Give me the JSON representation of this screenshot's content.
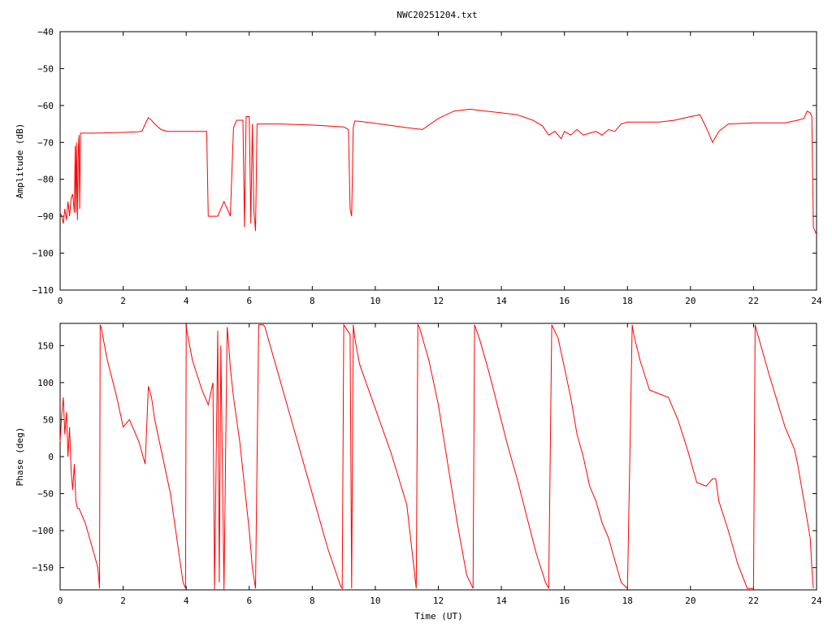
{
  "chart_data": [
    {
      "type": "line",
      "title": "NWC20251204.txt",
      "xlabel": "",
      "ylabel": "Amplitude (dB)",
      "xlim": [
        0,
        24
      ],
      "ylim": [
        -110,
        -40
      ],
      "xticks": [
        0,
        2,
        4,
        6,
        8,
        10,
        12,
        14,
        16,
        18,
        20,
        22,
        24
      ],
      "yticks": [
        -40,
        -50,
        -60,
        -70,
        -80,
        -90,
        -100,
        -110
      ],
      "color": "#ff0000",
      "grid": false,
      "series": [
        {
          "x": [
            0.0,
            0.05,
            0.1,
            0.15,
            0.2,
            0.25,
            0.3,
            0.35,
            0.4,
            0.45,
            0.48,
            0.5,
            0.52,
            0.55,
            0.58,
            0.6,
            0.62,
            0.65,
            0.7,
            0.8,
            1.0,
            1.5,
            2.0,
            2.5,
            2.6,
            2.7,
            2.8,
            2.9,
            3.0,
            3.2,
            3.4,
            3.5,
            4.0,
            4.5,
            4.65,
            4.7,
            4.8,
            5.0,
            5.2,
            5.4,
            5.5,
            5.6,
            5.7,
            5.8,
            5.85,
            5.9,
            6.0,
            6.05,
            6.1,
            6.15,
            6.2,
            6.25,
            7.0,
            8.0,
            9.0,
            9.15,
            9.2,
            9.25,
            9.3,
            9.35,
            9.5,
            10.0,
            11.0,
            11.5,
            12.0,
            12.5,
            13.0,
            13.5,
            14.0,
            14.5,
            15.0,
            15.3,
            15.5,
            15.7,
            15.9,
            16.0,
            16.2,
            16.4,
            16.6,
            16.8,
            17.0,
            17.2,
            17.4,
            17.6,
            17.8,
            18.0,
            18.5,
            19.0,
            19.5,
            20.0,
            20.3,
            20.5,
            20.7,
            20.9,
            21.2,
            22.0,
            23.0,
            23.4,
            23.6,
            23.7,
            23.8,
            23.85,
            23.9,
            24.0
          ],
          "y": [
            -89,
            -90,
            -92,
            -88,
            -91,
            -86,
            -90,
            -85,
            -84,
            -89,
            -71,
            -89,
            -70,
            -91,
            -71,
            -68,
            -88,
            -67.5,
            -67.5,
            -67.5,
            -67.5,
            -67.4,
            -67.3,
            -67.1,
            -66.9,
            -65,
            -63.3,
            -64,
            -65,
            -66.5,
            -67,
            -67,
            -67,
            -67,
            -67,
            -90,
            -90,
            -90,
            -86,
            -90,
            -66,
            -64,
            -64,
            -64,
            -93,
            -63,
            -63,
            -92,
            -65,
            -89,
            -94,
            -65,
            -65,
            -65.3,
            -65.8,
            -66.5,
            -88,
            -90,
            -66,
            -64.2,
            -64.3,
            -64.8,
            -66,
            -66.5,
            -63.5,
            -61.5,
            -61,
            -61.5,
            -62,
            -62.5,
            -64,
            -65.5,
            -68,
            -67,
            -69,
            -67,
            -68,
            -66.5,
            -68,
            -67.5,
            -67,
            -68,
            -66.5,
            -67,
            -65,
            -64.5,
            -64.5,
            -64.5,
            -64,
            -63,
            -62.5,
            -66,
            -70,
            -67,
            -65,
            -64.7,
            -64.7,
            -64,
            -63.5,
            -61.5,
            -62,
            -63,
            -93,
            -95
          ]
        }
      ]
    },
    {
      "type": "line",
      "title": "",
      "xlabel": "Time (UT)",
      "ylabel": "Phase (deg)",
      "xlim": [
        0,
        24
      ],
      "ylim": [
        -180,
        180
      ],
      "xticks": [
        0,
        2,
        4,
        6,
        8,
        10,
        12,
        14,
        16,
        18,
        20,
        22,
        24
      ],
      "yticks": [
        150,
        100,
        50,
        0,
        -50,
        -100,
        -150
      ],
      "color": "#ff0000",
      "grid": false,
      "series": [
        {
          "x": [
            0.0,
            0.05,
            0.1,
            0.15,
            0.2,
            0.25,
            0.3,
            0.35,
            0.4,
            0.45,
            0.5,
            0.55,
            0.6,
            0.8,
            1.0,
            1.2,
            1.25,
            1.27,
            1.3,
            1.5,
            1.8,
            2.0,
            2.2,
            2.3,
            2.5,
            2.7,
            2.8,
            2.9,
            3.0,
            3.5,
            3.9,
            3.98,
            4.0,
            4.02,
            4.2,
            4.5,
            4.7,
            4.85,
            4.9,
            5.0,
            5.05,
            5.1,
            5.2,
            5.3,
            5.35,
            5.4,
            5.5,
            5.7,
            5.9,
            6.0,
            6.1,
            6.2,
            6.3,
            6.45,
            6.5,
            7.0,
            7.5,
            8.0,
            8.5,
            8.9,
            8.95,
            9.0,
            9.2,
            9.25,
            9.3,
            9.35,
            9.5,
            10.0,
            10.5,
            11.0,
            11.3,
            11.35,
            11.4,
            11.7,
            12.0,
            12.3,
            12.6,
            12.9,
            13.1,
            13.15,
            13.3,
            13.6,
            13.9,
            14.2,
            14.5,
            14.8,
            15.1,
            15.4,
            15.5,
            15.6,
            15.8,
            16.0,
            16.2,
            16.4,
            16.6,
            16.8,
            17.0,
            17.2,
            17.4,
            17.6,
            17.8,
            18.0,
            18.15,
            18.2,
            18.4,
            18.7,
            19.0,
            19.3,
            19.6,
            19.9,
            20.2,
            20.5,
            20.7,
            20.8,
            20.9,
            21.2,
            21.5,
            21.8,
            22.0,
            22.05,
            22.1,
            22.5,
            23.0,
            23.3,
            23.4,
            23.6,
            23.8,
            23.85,
            23.9
          ],
          "y": [
            20,
            55,
            80,
            30,
            60,
            0,
            40,
            -20,
            -45,
            -10,
            -60,
            -70,
            -70,
            -90,
            -120,
            -150,
            -178,
            178,
            175,
            130,
            80,
            40,
            50,
            40,
            20,
            -10,
            95,
            80,
            50,
            -50,
            -170,
            -178,
            178,
            170,
            130,
            90,
            70,
            100,
            -180,
            170,
            -170,
            150,
            -180,
            175,
            150,
            120,
            80,
            20,
            -60,
            -100,
            -150,
            -178,
            178,
            178,
            175,
            100,
            25,
            -50,
            -125,
            -175,
            -178,
            178,
            165,
            -178,
            178,
            160,
            125,
            65,
            5,
            -65,
            -178,
            178,
            175,
            130,
            70,
            -10,
            -90,
            -160,
            -178,
            178,
            160,
            115,
            65,
            15,
            -30,
            -80,
            -130,
            -170,
            -178,
            178,
            160,
            120,
            80,
            30,
            0,
            -40,
            -60,
            -90,
            -110,
            -140,
            -170,
            -178,
            178,
            165,
            130,
            90,
            85,
            80,
            50,
            10,
            -35,
            -40,
            -30,
            -30,
            -60,
            -100,
            -145,
            -178,
            -178,
            178,
            170,
            110,
            40,
            10,
            -10,
            -60,
            -110,
            -150,
            -178
          ]
        }
      ]
    }
  ]
}
